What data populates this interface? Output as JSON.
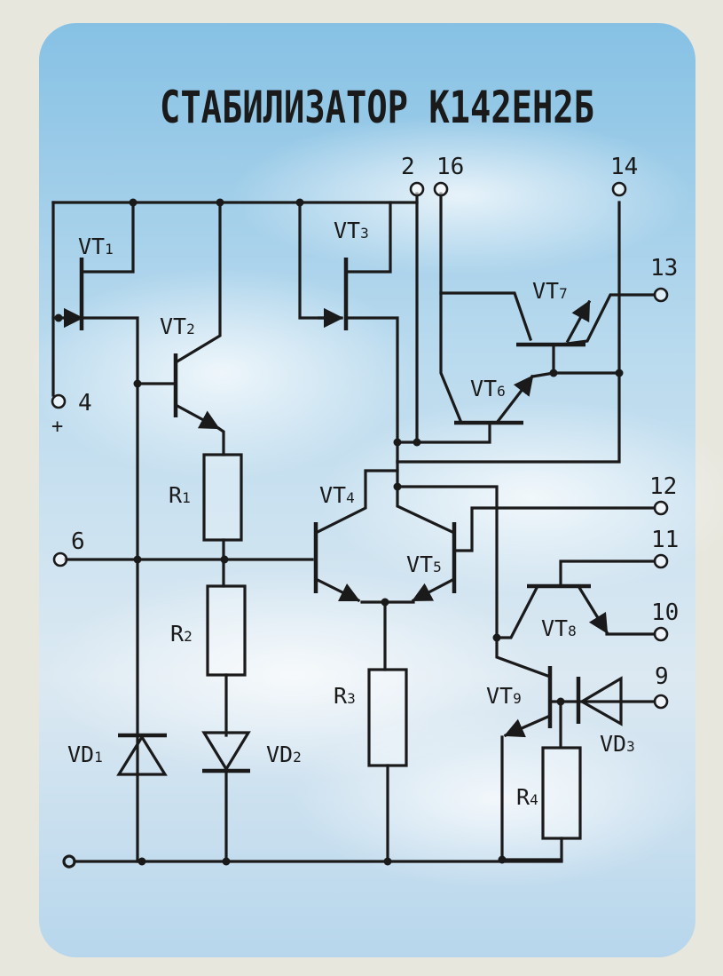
{
  "title": "СТАБИЛИЗАТОР К142ЕН2Б",
  "colors": {
    "panel_top": "#8ec6e6",
    "panel_bottom": "#eef4f8",
    "wall": "#eaeae2",
    "ink": "#1a1a1a"
  },
  "pins": {
    "p2": "2",
    "p16": "16",
    "p14": "14",
    "p13": "13",
    "p4": "4",
    "p6": "6",
    "p12": "12",
    "p11": "11",
    "p10": "10",
    "p9": "9"
  },
  "plus_sign": "+",
  "transistors": {
    "vt1": {
      "main": "VT",
      "sub": "1"
    },
    "vt2": {
      "main": "VT",
      "sub": "2"
    },
    "vt3": {
      "main": "VT",
      "sub": "3"
    },
    "vt4": {
      "main": "VT",
      "sub": "4"
    },
    "vt5": {
      "main": "VT",
      "sub": "5"
    },
    "vt6": {
      "main": "VT",
      "sub": "6"
    },
    "vt7": {
      "main": "VT",
      "sub": "7"
    },
    "vt8": {
      "main": "VT",
      "sub": "8"
    },
    "vt9": {
      "main": "VT",
      "sub": "9"
    }
  },
  "resistors": {
    "r1": {
      "main": "R",
      "sub": "1"
    },
    "r2": {
      "main": "R",
      "sub": "2"
    },
    "r3": {
      "main": "R",
      "sub": "3"
    },
    "r4": {
      "main": "R",
      "sub": "4"
    }
  },
  "diodes": {
    "vd1": {
      "main": "VD",
      "sub": "1"
    },
    "vd2": {
      "main": "VD",
      "sub": "2"
    },
    "vd3": {
      "main": "VD",
      "sub": "3"
    }
  }
}
